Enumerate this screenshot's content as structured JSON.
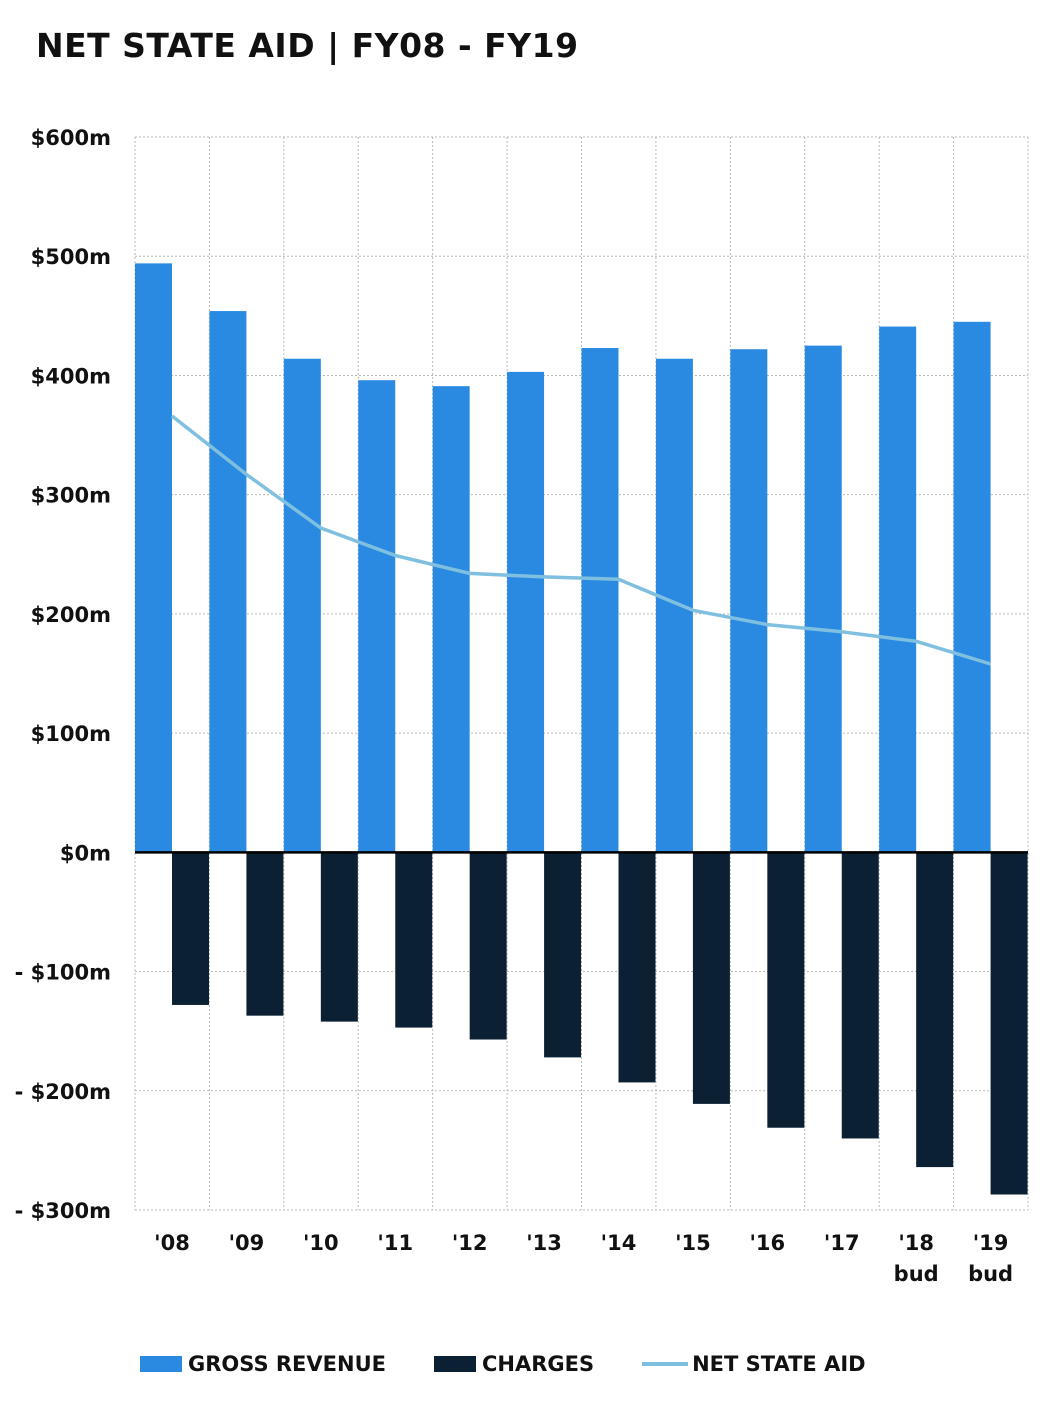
{
  "title": "NET STATE AID | FY08 - FY19",
  "colors": {
    "gross_revenue": "#2a8ae2",
    "charges": "#0b2033",
    "net_state_aid": "#7fbfdf",
    "grid": "#b8b8b8"
  },
  "chart_data": {
    "type": "bar",
    "title": "NET STATE AID | FY08 - FY19",
    "xlabel": "",
    "ylabel": "",
    "ylim": [
      -300,
      600
    ],
    "y_ticks": [
      600,
      500,
      400,
      300,
      200,
      100,
      0,
      -100,
      -200,
      -300
    ],
    "y_tick_labels": [
      "$600m",
      "$500m",
      "$400m",
      "$300m",
      "$200m",
      "$100m",
      "$0m",
      "- $100m",
      "- $200m",
      "- $300m"
    ],
    "categories": [
      "'08",
      "'09",
      "'10",
      "'11",
      "'12",
      "'13",
      "'14",
      "'15",
      "'16",
      "'17",
      "'18",
      "'19"
    ],
    "category_sublabels": [
      "",
      "",
      "",
      "",
      "",
      "",
      "",
      "",
      "",
      "",
      "bud",
      "bud"
    ],
    "grid": true,
    "legend_position": "bottom",
    "series": [
      {
        "name": "GROSS REVENUE",
        "kind": "bar",
        "values": [
          494,
          454,
          414,
          396,
          391,
          403,
          423,
          414,
          422,
          425,
          441,
          445
        ]
      },
      {
        "name": "CHARGES",
        "kind": "bar",
        "values": [
          -128,
          -137,
          -142,
          -147,
          -157,
          -172,
          -193,
          -211,
          -231,
          -240,
          -264,
          -287
        ]
      },
      {
        "name": "NET STATE AID",
        "kind": "line",
        "values": [
          366,
          317,
          272,
          249,
          234,
          231,
          229,
          203,
          191,
          185,
          177,
          158
        ]
      }
    ]
  }
}
